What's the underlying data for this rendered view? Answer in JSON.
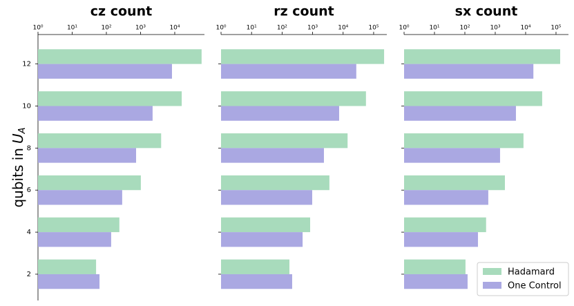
{
  "chart_data": [
    {
      "type": "bar",
      "orientation": "horizontal",
      "title": "cz count",
      "xscale": "log",
      "ylabel": [
        "qubits in",
        "U",
        "A"
      ],
      "categories": [
        2,
        4,
        6,
        8,
        10,
        12
      ],
      "series": [
        {
          "name": "Hadamard",
          "color": "#a8dbbc",
          "values": [
            50,
            240,
            1020,
            4000,
            16000,
            61000
          ]
        },
        {
          "name": "One Control",
          "color": "#aaa8e2",
          "values": [
            63,
            138,
            290,
            740,
            2250,
            8300
          ]
        }
      ],
      "xlim": [
        1,
        74000
      ],
      "xticks": [
        {
          "value": 1,
          "label": "10⁰"
        },
        {
          "value": 10,
          "label": "10¹"
        },
        {
          "value": 100,
          "label": "10²"
        },
        {
          "value": 1000,
          "label": "10³"
        },
        {
          "value": 10000,
          "label": "10⁴"
        }
      ],
      "ylim": [
        0.75,
        13.4
      ],
      "yticks": [
        2,
        4,
        6,
        8,
        10,
        12
      ]
    },
    {
      "type": "bar",
      "orientation": "horizontal",
      "title": "rz count",
      "xscale": "log",
      "categories": [
        2,
        4,
        6,
        8,
        10,
        12
      ],
      "series": [
        {
          "name": "Hadamard",
          "color": "#a8dbbc",
          "values": [
            174,
            830,
            3550,
            14000,
            56000,
            220000
          ]
        },
        {
          "name": "One Control",
          "color": "#aaa8e2",
          "values": [
            214,
            470,
            970,
            2350,
            7400,
            27000
          ]
        }
      ],
      "xlim": [
        1,
        270000
      ],
      "xticks": [
        {
          "value": 1,
          "label": "10⁰"
        },
        {
          "value": 10,
          "label": "10¹"
        },
        {
          "value": 100,
          "label": "10²"
        },
        {
          "value": 1000,
          "label": "10³"
        },
        {
          "value": 10000,
          "label": "10⁴"
        },
        {
          "value": 100000,
          "label": "10⁵"
        }
      ],
      "ylim": [
        0.75,
        13.4
      ]
    },
    {
      "type": "bar",
      "orientation": "horizontal",
      "title": "sx count",
      "xscale": "log",
      "legend": "lower right",
      "categories": [
        2,
        4,
        6,
        8,
        10,
        12
      ],
      "series": [
        {
          "name": "Hadamard",
          "color": "#a8dbbc",
          "values": [
            105,
            500,
            2080,
            8500,
            35000,
            137000
          ]
        },
        {
          "name": "One Control",
          "color": "#aaa8e2",
          "values": [
            123,
            270,
            590,
            1440,
            4800,
            18000
          ]
        }
      ],
      "xlim": [
        1,
        257000
      ],
      "xticks": [
        {
          "value": 1,
          "label": "10⁰"
        },
        {
          "value": 10,
          "label": "10¹"
        },
        {
          "value": 100,
          "label": "10²"
        },
        {
          "value": 1000,
          "label": "10³"
        },
        {
          "value": 10000,
          "label": "10⁴"
        },
        {
          "value": 100000,
          "label": "10⁵"
        }
      ],
      "ylim": [
        0.75,
        13.4
      ]
    }
  ]
}
